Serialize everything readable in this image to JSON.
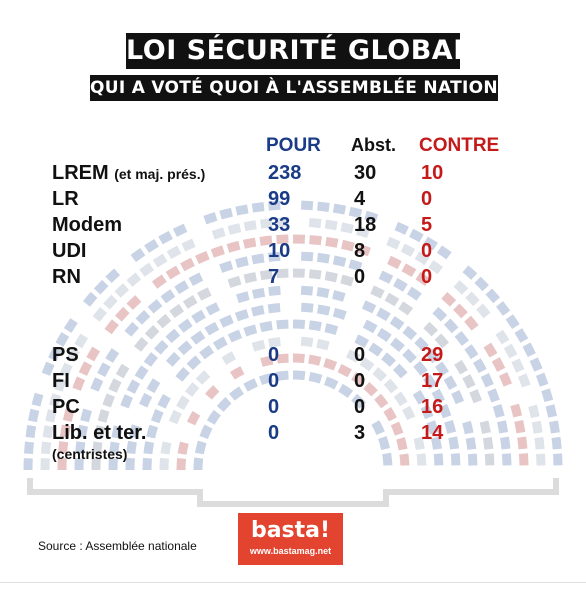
{
  "title": "LOI SÉCURITÉ GLOBALE",
  "subtitle": "QUI A VOTÉ QUOI À L'ASSEMBLÉE NATIONALE ?",
  "source": "Source : Assemblée nationale",
  "logo": {
    "name": "basta!",
    "url": "www.bastamag.net"
  },
  "colors": {
    "pour": "#1a3b86",
    "abst": "#111111",
    "contre": "#c41a1a",
    "logo": "#e2442f"
  },
  "chart_data": {
    "type": "table",
    "columns": [
      "POUR",
      "Abst.",
      "CONTRE"
    ],
    "rows": [
      {
        "party": "LREM",
        "note": "(et maj. prés.)",
        "pour": 238,
        "abst": 30,
        "contre": 10
      },
      {
        "party": "LR",
        "note": "",
        "pour": 99,
        "abst": 4,
        "contre": 0
      },
      {
        "party": "Modem",
        "note": "",
        "pour": 33,
        "abst": 18,
        "contre": 5
      },
      {
        "party": "UDI",
        "note": "",
        "pour": 10,
        "abst": 8,
        "contre": 0
      },
      {
        "party": "RN",
        "note": "",
        "pour": 7,
        "abst": 0,
        "contre": 0
      },
      {
        "party": "PS",
        "note": "",
        "pour": 0,
        "abst": 0,
        "contre": 29
      },
      {
        "party": "FI",
        "note": "",
        "pour": 0,
        "abst": 0,
        "contre": 17
      },
      {
        "party": "PC",
        "note": "",
        "pour": 0,
        "abst": 0,
        "contre": 16
      },
      {
        "party": "Lib. et ter.",
        "note": "(centristes)",
        "pour": 0,
        "abst": 3,
        "contre": 14
      }
    ]
  }
}
